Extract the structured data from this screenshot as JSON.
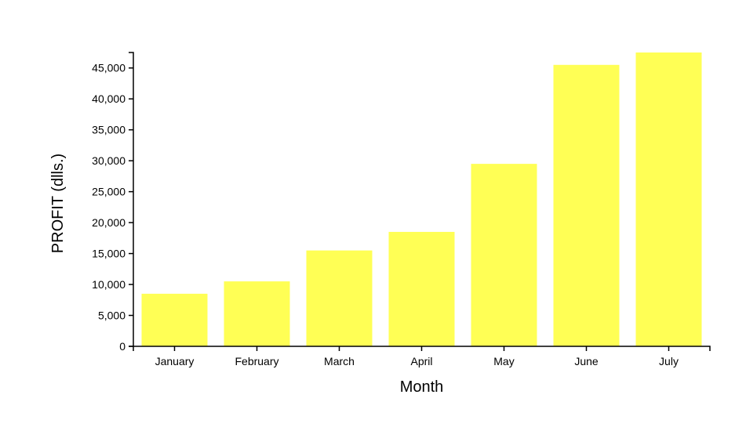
{
  "chart_data": {
    "type": "bar",
    "title": "",
    "xlabel": "Month",
    "ylabel": "PROFIT (dlls.)",
    "categories": [
      "January",
      "February",
      "March",
      "April",
      "May",
      "June",
      "July"
    ],
    "values": [
      8500,
      10500,
      15500,
      18500,
      29500,
      45500,
      47500
    ],
    "ylim": [
      0,
      47500
    ],
    "yticks": [
      0,
      5000,
      10000,
      15000,
      20000,
      25000,
      30000,
      35000,
      40000,
      45000
    ],
    "ytick_labels": [
      "0",
      "5,000",
      "10,000",
      "15,000",
      "20,000",
      "25,000",
      "30,000",
      "35,000",
      "40,000",
      "45,000"
    ],
    "bar_color": "#ffff55",
    "grid": false,
    "legend": "none"
  }
}
